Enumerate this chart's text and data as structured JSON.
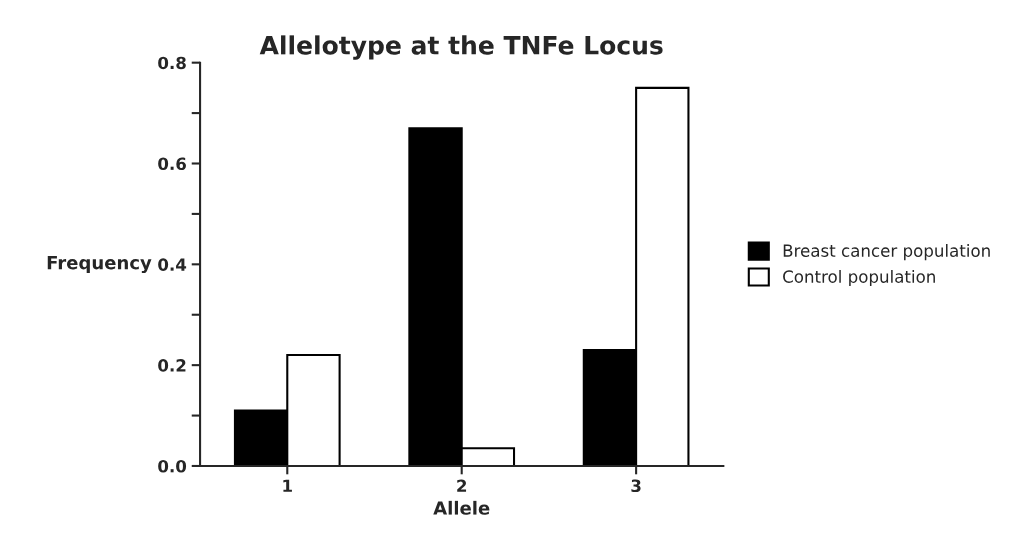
{
  "chart_data": {
    "type": "bar",
    "title": "Allelotype at the TNFe Locus",
    "xlabel": "Allele",
    "ylabel": "Frequency",
    "categories": [
      "1",
      "2",
      "3"
    ],
    "series": [
      {
        "name": "Breast cancer population",
        "color": "#000000",
        "values": [
          0.11,
          0.67,
          0.23
        ]
      },
      {
        "name": "Control population",
        "color": "#ffffff",
        "values": [
          0.22,
          0.035,
          0.75
        ]
      }
    ],
    "ylim": [
      0,
      0.8
    ],
    "yticks": [
      {
        "value": 0,
        "label": "0.0"
      },
      {
        "value": 0.1,
        "label": null
      },
      {
        "value": 0.2,
        "label": "0.2"
      },
      {
        "value": 0.3,
        "label": null
      },
      {
        "value": 0.4,
        "label": "0.4"
      },
      {
        "value": 0.5,
        "label": null
      },
      {
        "value": 0.6,
        "label": "0.6"
      },
      {
        "value": 0.7,
        "label": null
      },
      {
        "value": 0.8,
        "label": "0.8"
      }
    ],
    "grid": false,
    "legend": "right"
  }
}
